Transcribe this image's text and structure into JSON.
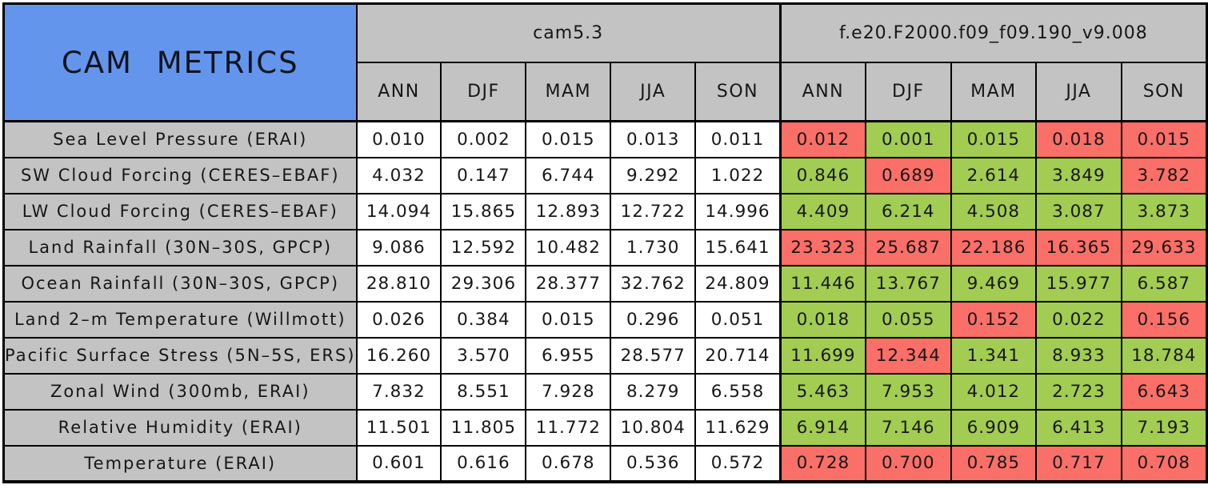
{
  "colors": {
    "corner_blue": "#6495ED",
    "header_gray": "#C3C3C3",
    "better_green": "#A2CC52",
    "worse_red": "#FA6F68",
    "border_black": "#000000",
    "cell_white": "#FFFFFF"
  },
  "chart_data": {
    "type": "table",
    "title": "CAM METRICS",
    "models": [
      "cam5.3",
      "f.e20.F2000.f09_f09.190_v9.008"
    ],
    "seasons": [
      "ANN",
      "DJF",
      "MAM",
      "JJA",
      "SON"
    ],
    "cell_color_coding": {
      "better": "#A2CC52",
      "worse": "#FA6F68",
      "baseline": "#FFFFFF"
    },
    "rows": [
      {
        "label": "Sea Level Pressure (ERAI)",
        "cam5_3": [
          "0.010",
          "0.002",
          "0.015",
          "0.013",
          "0.011"
        ],
        "f_e20": [
          "0.012",
          "0.001",
          "0.015",
          "0.018",
          "0.015"
        ],
        "f_e20_status": [
          "worse",
          "better",
          "better",
          "worse",
          "worse"
        ]
      },
      {
        "label": "SW Cloud Forcing (CERES–EBAF)",
        "cam5_3": [
          "4.032",
          "0.147",
          "6.744",
          "9.292",
          "1.022"
        ],
        "f_e20": [
          "0.846",
          "0.689",
          "2.614",
          "3.849",
          "3.782"
        ],
        "f_e20_status": [
          "better",
          "worse",
          "better",
          "better",
          "worse"
        ]
      },
      {
        "label": "LW Cloud Forcing (CERES–EBAF)",
        "cam5_3": [
          "14.094",
          "15.865",
          "12.893",
          "12.722",
          "14.996"
        ],
        "f_e20": [
          "4.409",
          "6.214",
          "4.508",
          "3.087",
          "3.873"
        ],
        "f_e20_status": [
          "better",
          "better",
          "better",
          "better",
          "better"
        ]
      },
      {
        "label": "Land Rainfall (30N–30S, GPCP)",
        "cam5_3": [
          "9.086",
          "12.592",
          "10.482",
          "1.730",
          "15.641"
        ],
        "f_e20": [
          "23.323",
          "25.687",
          "22.186",
          "16.365",
          "29.633"
        ],
        "f_e20_status": [
          "worse",
          "worse",
          "worse",
          "worse",
          "worse"
        ]
      },
      {
        "label": "Ocean Rainfall (30N–30S, GPCP)",
        "cam5_3": [
          "28.810",
          "29.306",
          "28.377",
          "32.762",
          "24.809"
        ],
        "f_e20": [
          "11.446",
          "13.767",
          "9.469",
          "15.977",
          "6.587"
        ],
        "f_e20_status": [
          "better",
          "better",
          "better",
          "better",
          "better"
        ]
      },
      {
        "label": "Land 2–m Temperature (Willmott)",
        "cam5_3": [
          "0.026",
          "0.384",
          "0.015",
          "0.296",
          "0.051"
        ],
        "f_e20": [
          "0.018",
          "0.055",
          "0.152",
          "0.022",
          "0.156"
        ],
        "f_e20_status": [
          "better",
          "better",
          "worse",
          "better",
          "worse"
        ]
      },
      {
        "label": "Pacific Surface Stress (5N–5S, ERS)",
        "cam5_3": [
          "16.260",
          "3.570",
          "6.955",
          "28.577",
          "20.714"
        ],
        "f_e20": [
          "11.699",
          "12.344",
          "1.341",
          "8.933",
          "18.784"
        ],
        "f_e20_status": [
          "better",
          "worse",
          "better",
          "better",
          "better"
        ]
      },
      {
        "label": "Zonal Wind (300mb, ERAI)",
        "cam5_3": [
          "7.832",
          "8.551",
          "7.928",
          "8.279",
          "6.558"
        ],
        "f_e20": [
          "5.463",
          "7.953",
          "4.012",
          "2.723",
          "6.643"
        ],
        "f_e20_status": [
          "better",
          "better",
          "better",
          "better",
          "worse"
        ]
      },
      {
        "label": "Relative Humidity (ERAI)",
        "cam5_3": [
          "11.501",
          "11.805",
          "11.772",
          "10.804",
          "11.629"
        ],
        "f_e20": [
          "6.914",
          "7.146",
          "6.909",
          "6.413",
          "7.193"
        ],
        "f_e20_status": [
          "better",
          "better",
          "better",
          "better",
          "better"
        ]
      },
      {
        "label": "Temperature (ERAI)",
        "cam5_3": [
          "0.601",
          "0.616",
          "0.678",
          "0.536",
          "0.572"
        ],
        "f_e20": [
          "0.728",
          "0.700",
          "0.785",
          "0.717",
          "0.708"
        ],
        "f_e20_status": [
          "worse",
          "worse",
          "worse",
          "worse",
          "worse"
        ]
      }
    ]
  }
}
